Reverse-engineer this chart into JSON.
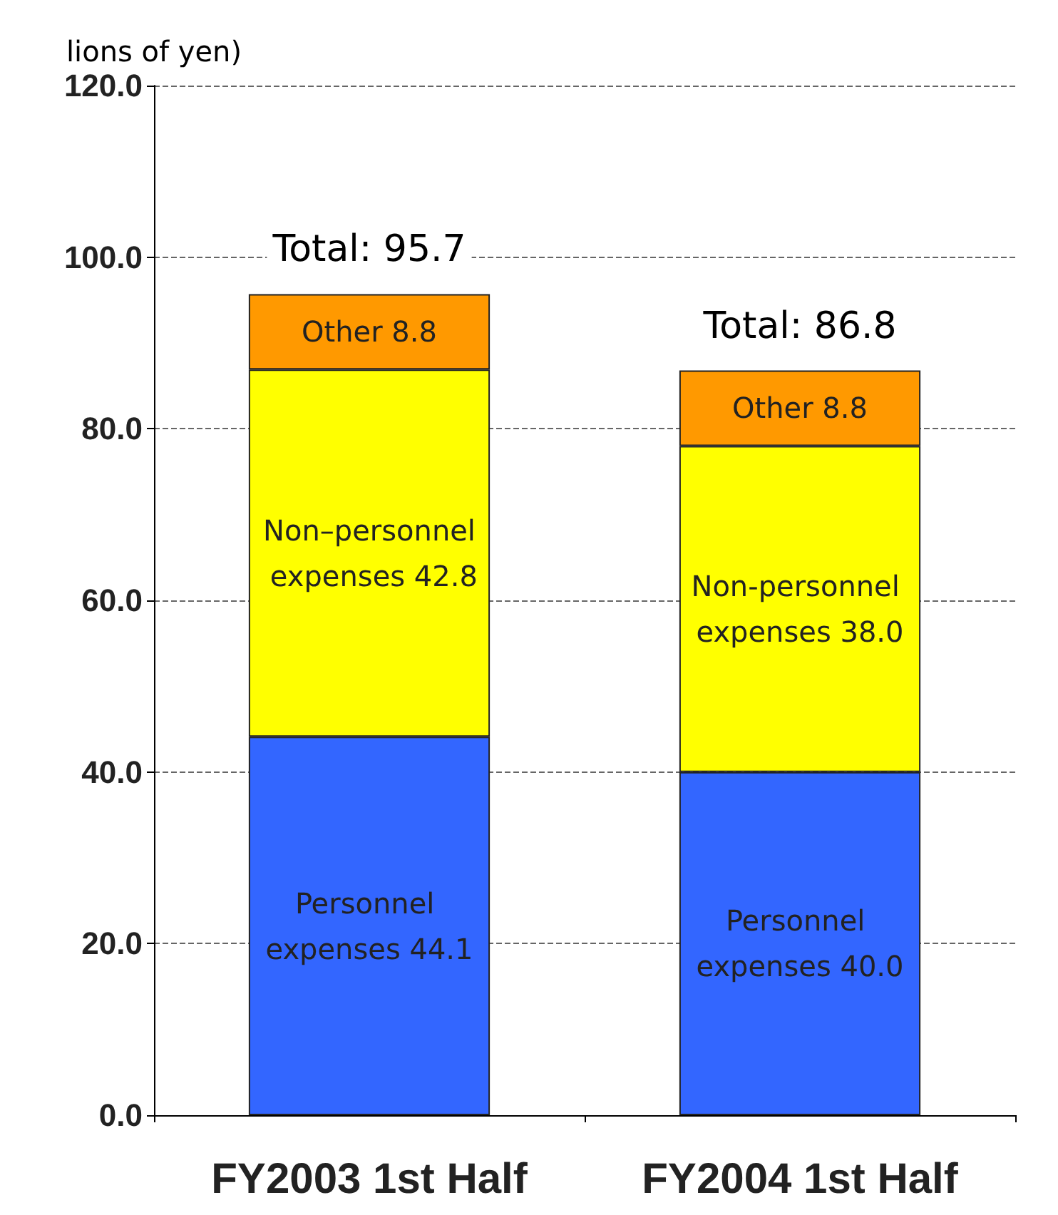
{
  "chart_data": {
    "type": "bar",
    "stacked": true,
    "ylabel": "lions of yen)",
    "categories": [
      "FY2003 1st Half",
      "FY2004 1st Half"
    ],
    "series": [
      {
        "color": "#3366ff",
        "values": [
          44.1,
          40.0
        ],
        "value_labels": [
          "Personnel expenses 44.1",
          "Personnel expenses 40.0"
        ]
      },
      {
        "color": "#ffff00",
        "values": [
          42.8,
          38.0
        ],
        "value_labels": [
          "Non–personnel expenses 42.8",
          "Non-personnel expenses 38.0"
        ]
      },
      {
        "color": "#ff9900",
        "values": [
          8.8,
          8.8
        ],
        "value_labels": [
          "Other 8.8",
          "Other 8.8"
        ]
      }
    ],
    "totals": [
      "Total: 95.7",
      "Total: 86.8"
    ],
    "ylim": [
      0,
      120
    ],
    "yticks": [
      {
        "value": 0,
        "label": "0.0"
      },
      {
        "value": 20,
        "label": "20.0"
      },
      {
        "value": 40,
        "label": "40.0"
      },
      {
        "value": 60,
        "label": "60.0"
      },
      {
        "value": 80,
        "label": "80.0"
      },
      {
        "value": 100,
        "label": "100.0"
      },
      {
        "value": 120,
        "label": "120.0"
      }
    ],
    "grid": "y"
  }
}
